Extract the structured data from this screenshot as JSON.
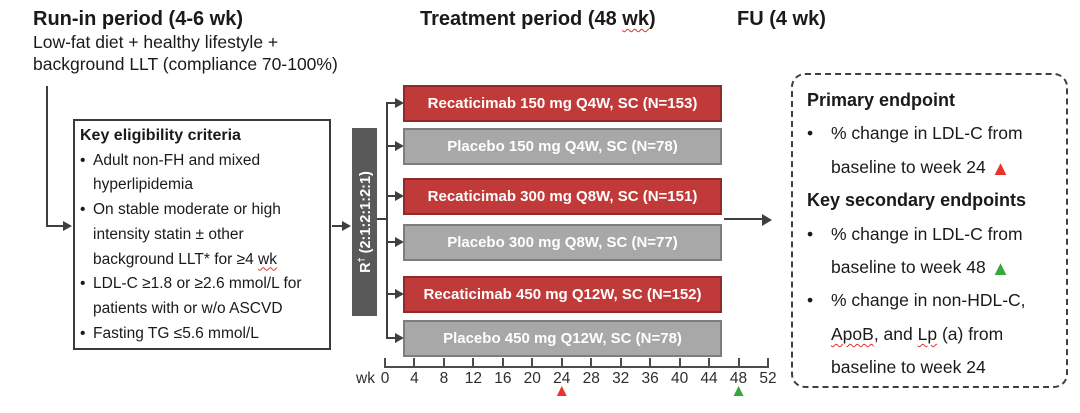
{
  "headers": {
    "run_in": {
      "title": "Run-in period (4-6 wk)",
      "line1": "Low-fat diet + healthy lifestyle +",
      "line2": "background LLT (compliance 70-100%)"
    },
    "treatment": {
      "prefix": "Treatment period (48 ",
      "wavy": "wk",
      "suffix": ")"
    },
    "fu": "FU (4 wk)"
  },
  "eligibility": {
    "title": "Key eligibility criteria",
    "bullet_char": "•",
    "b1l1": "Adult non-FH and mixed",
    "b1l2": "hyperlipidemia",
    "b2l1": "On stable moderate or high",
    "b2l2": "intensity statin ± other",
    "b2l3_pre": "background LLT* for ≥4 ",
    "b2l3_wavy": "wk",
    "b3l1": "LDL-C ≥1.8 or ≥2.6 mmol/L for",
    "b3l2": "patients with or w/o ASCVD",
    "b4l1": "Fasting TG ≤5.6 mmol/L"
  },
  "randomization": {
    "label_prefix": "R",
    "label_sup": "†",
    "label_ratio": " (2:1:2:1:2:1)"
  },
  "arms": [
    {
      "label": "Recaticimab 150 mg Q4W, SC (N=153)",
      "type": "drug"
    },
    {
      "label": "Placebo 150 mg Q4W, SC (N=78)",
      "type": "placebo"
    },
    {
      "label": "Recaticimab 300 mg Q8W, SC (N=151)",
      "type": "drug"
    },
    {
      "label": "Placebo 300 mg Q8W, SC (N=77)",
      "type": "placebo"
    },
    {
      "label": "Recaticimab 450 mg Q12W, SC (N=152)",
      "type": "drug"
    },
    {
      "label": "Placebo 450 mg Q12W, SC (N=78)",
      "type": "placebo"
    }
  ],
  "axis": {
    "unit_label": "wk",
    "ticks": [
      "0",
      "4",
      "8",
      "12",
      "16",
      "20",
      "24",
      "28",
      "32",
      "36",
      "40",
      "44",
      "48",
      "52"
    ],
    "markers": [
      {
        "week": 24,
        "color": "#e8352c",
        "name": "week24-primary-marker-icon"
      },
      {
        "week": 48,
        "color": "#35a93c",
        "name": "week48-secondary-marker-icon"
      }
    ]
  },
  "endpoints": {
    "primary_title": "Primary endpoint",
    "bullet_char": "•",
    "p1l1": "% change in LDL-C from",
    "p1l2": "baseline to week 24 ",
    "secondary_title": "Key secondary endpoints",
    "s1l1": "% change in LDL-C from",
    "s1l2": "baseline to week 48 ",
    "s2l1": "% change in non-HDL-C,",
    "s2l2_w1": "ApoB",
    "s2l2_m1": ", and ",
    "s2l2_w2": "Lp",
    "s2l2_m2": " (a) from",
    "s2l3": "baseline to week 24"
  },
  "icons": {
    "triangle": "▲"
  },
  "palette": {
    "drug_bar_fill": "#bf3a38",
    "drug_bar_border": "#8f2b29",
    "placebo_bar_fill": "#a8a8a8",
    "placebo_bar_border": "#7d7d7d",
    "randomization_bar_fill": "#595959",
    "marker_red": "#e8352c",
    "marker_green": "#35a93c",
    "squiggle_red": "#e03131",
    "connector": "#3f3f3f"
  }
}
